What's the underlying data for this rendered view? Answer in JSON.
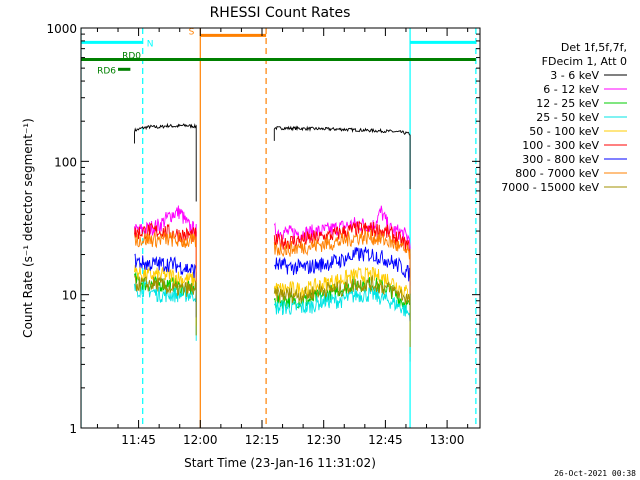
{
  "chart_data": {
    "type": "line",
    "title": "RHESSI Count Rates",
    "xlabel": "Start Time (23-Jan-16 11:31:02)",
    "ylabel": "Count Rate (s⁻¹ detector segment⁻¹)",
    "y_scale": "log",
    "ylim": [
      1,
      1000
    ],
    "xlim": [
      "11:31",
      "13:08"
    ],
    "x_ticks": [
      "11:45",
      "12:00",
      "12:15",
      "12:30",
      "12:45",
      "13:00"
    ],
    "y_ticks": [
      "1",
      "10",
      "100",
      "1000"
    ],
    "legend_header": [
      "Det 1f,5f,7f,",
      "FDecim 1, Att 0"
    ],
    "legend_position": "right",
    "footer": "26-Oct-2021 00:38",
    "series": [
      {
        "name": "3 - 6 keV",
        "color": "#000000",
        "segments": [
          {
            "x": [
              "11:44",
              "11:46",
              "11:48",
              "11:50",
              "11:52",
              "11:54",
              "11:56",
              "11:58",
              "11:59"
            ],
            "y": [
              170,
              178,
              182,
              180,
              185,
              183,
              186,
              184,
              182
            ]
          },
          {
            "x": [
              "12:18",
              "12:22",
              "12:26",
              "12:30",
              "12:34",
              "12:38",
              "12:42",
              "12:46",
              "12:49",
              "12:51"
            ],
            "y": [
              178,
              177,
              176,
              175,
              174,
              172,
              170,
              168,
              165,
              160
            ]
          }
        ]
      },
      {
        "name": "6 - 12 keV",
        "color": "#ff00ff",
        "segments": [
          {
            "x": [
              "11:44",
              "11:47",
              "11:50",
              "11:53",
              "11:55",
              "11:57",
              "11:59"
            ],
            "y": [
              30,
              31,
              33,
              40,
              42,
              33,
              30
            ]
          },
          {
            "x": [
              "12:18",
              "12:22",
              "12:26",
              "12:30",
              "12:34",
              "12:38",
              "12:42",
              "12:44",
              "12:46",
              "12:49",
              "12:51"
            ],
            "y": [
              30,
              29,
              29,
              30,
              32,
              34,
              33,
              42,
              31,
              29,
              26
            ]
          }
        ]
      },
      {
        "name": "12 - 25 keV",
        "color": "#00cc00",
        "segments": [
          {
            "x": [
              "11:44",
              "11:47",
              "11:50",
              "11:53",
              "11:56",
              "11:59"
            ],
            "y": [
              13,
              12,
              12,
              12,
              11,
              11
            ]
          },
          {
            "x": [
              "12:18",
              "12:22",
              "12:26",
              "12:30",
              "12:34",
              "12:38",
              "12:42",
              "12:46",
              "12:49",
              "12:51"
            ],
            "y": [
              9,
              9,
              9,
              10,
              11,
              12,
              12,
              11,
              9,
              8
            ]
          }
        ]
      },
      {
        "name": "25 - 50 keV",
        "color": "#00e5e5",
        "segments": [
          {
            "x": [
              "11:44",
              "11:47",
              "11:50",
              "11:53",
              "11:56",
              "11:59"
            ],
            "y": [
              11,
              11,
              10,
              10,
              10,
              10
            ]
          },
          {
            "x": [
              "12:18",
              "12:22",
              "12:26",
              "12:30",
              "12:34",
              "12:38",
              "12:42",
              "12:46",
              "12:49",
              "12:51"
            ],
            "y": [
              8,
              8,
              8,
              9,
              9,
              10,
              10,
              9,
              8,
              7
            ]
          }
        ]
      },
      {
        "name": "50 - 100 keV",
        "color": "#ffcc00",
        "segments": [
          {
            "x": [
              "11:44",
              "11:47",
              "11:50",
              "11:53",
              "11:56",
              "11:59"
            ],
            "y": [
              15,
              14,
              14,
              14,
              13,
              13
            ]
          },
          {
            "x": [
              "12:18",
              "12:22",
              "12:26",
              "12:30",
              "12:34",
              "12:38",
              "12:42",
              "12:46",
              "12:49",
              "12:51"
            ],
            "y": [
              11,
              11,
              11,
              12,
              13,
              14,
              14,
              13,
              11,
              10
            ]
          }
        ]
      },
      {
        "name": "100 - 300 keV",
        "color": "#ff0000",
        "segments": [
          {
            "x": [
              "11:44",
              "11:47",
              "11:50",
              "11:53",
              "11:56",
              "11:59"
            ],
            "y": [
              29,
              30,
              30,
              29,
              28,
              28
            ]
          },
          {
            "x": [
              "12:18",
              "12:22",
              "12:26",
              "12:30",
              "12:34",
              "12:38",
              "12:42",
              "12:46",
              "12:49",
              "12:51"
            ],
            "y": [
              25,
              25,
              26,
              27,
              29,
              31,
              31,
              29,
              25,
              22
            ]
          }
        ]
      },
      {
        "name": "300 - 800 keV",
        "color": "#0000ff",
        "segments": [
          {
            "x": [
              "11:44",
              "11:47",
              "11:50",
              "11:53",
              "11:56",
              "11:59"
            ],
            "y": [
              18,
              17,
              17,
              17,
              16,
              15
            ]
          },
          {
            "x": [
              "12:18",
              "12:22",
              "12:26",
              "12:30",
              "12:34",
              "12:38",
              "12:42",
              "12:46",
              "12:49",
              "12:51"
            ],
            "y": [
              17,
              16,
              16,
              17,
              18,
              20,
              20,
              18,
              16,
              14
            ]
          }
        ]
      },
      {
        "name": "800 - 7000 keV",
        "color": "#ff8000",
        "segments": [
          {
            "x": [
              "11:44",
              "11:47",
              "11:50",
              "11:53",
              "11:56",
              "11:59"
            ],
            "y": [
              26,
              26,
              26,
              26,
              25,
              25
            ]
          },
          {
            "x": [
              "12:18",
              "12:22",
              "12:26",
              "12:30",
              "12:34",
              "12:38",
              "12:42",
              "12:46",
              "12:49",
              "12:51"
            ],
            "y": [
              22,
              22,
              23,
              24,
              25,
              27,
              27,
              25,
              22,
              20
            ]
          }
        ]
      },
      {
        "name": "7000 - 15000 keV",
        "color": "#a09000",
        "segments": [
          {
            "x": [
              "11:44",
              "11:47",
              "11:50",
              "11:53",
              "11:56",
              "11:59"
            ],
            "y": [
              12,
              12,
              12,
              11,
              11,
              11
            ]
          },
          {
            "x": [
              "12:18",
              "12:22",
              "12:26",
              "12:30",
              "12:34",
              "12:38",
              "12:42",
              "12:46",
              "12:49",
              "12:51"
            ],
            "y": [
              10,
              10,
              10,
              11,
              11,
              12,
              12,
              11,
              10,
              9
            ]
          }
        ]
      }
    ],
    "flag_bars": [
      {
        "label": "N",
        "color": "#00ffff",
        "segments": [
          {
            "x": [
              "11:31",
              "11:46"
            ],
            "y": 780
          },
          {
            "x": [
              "12:51",
              "13:07"
            ],
            "y": 780
          }
        ]
      },
      {
        "label": "S",
        "color": "#ff8000",
        "segments": [
          {
            "x": [
              "12:00",
              "12:16"
            ],
            "y": 880
          }
        ]
      },
      {
        "label": "RD0",
        "color": "#008000",
        "segments": [
          {
            "x": [
              "11:31",
              "13:07"
            ],
            "y": 580
          }
        ]
      },
      {
        "label": "RD6",
        "color": "#008000",
        "segments": [
          {
            "x": [
              "11:40",
              "11:43"
            ],
            "y": 490
          }
        ]
      }
    ],
    "vertical_lines": [
      {
        "x": "11:31",
        "color": "#00ffff",
        "style": "solid"
      },
      {
        "x": "11:46",
        "color": "#00ffff",
        "style": "dashed"
      },
      {
        "x": "12:00",
        "color": "#ff8000",
        "style": "solid"
      },
      {
        "x": "12:16",
        "color": "#ff8000",
        "style": "dashed"
      },
      {
        "x": "12:51",
        "color": "#00ffff",
        "style": "solid"
      },
      {
        "x": "13:07",
        "color": "#00ffff",
        "style": "dashed"
      }
    ]
  }
}
